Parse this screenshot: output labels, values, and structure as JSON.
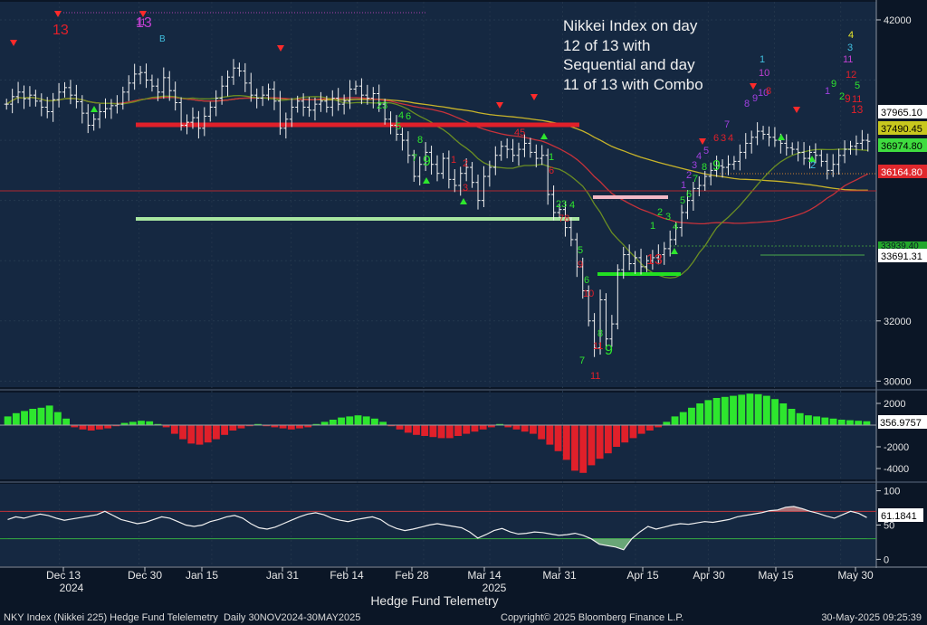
{
  "chart_data": {
    "type": "candlestick",
    "instrument": "NKY Index (Nikkei 225) Hedge Fund Telelemetry",
    "period_label": "Daily 30NOV2024-30MAY2025",
    "copyright": "Copyright© 2025 Bloomberg Finance L.P.",
    "timestamp": "30-May-2025 09:25:39",
    "footer_center": "Hedge Fund Telemetry",
    "annotation": [
      "Nikkei Index on day",
      "12 of 13 with",
      "Sequential and day",
      "11 of 13 with Combo"
    ],
    "x_ticks": [
      "Dec 13",
      "Dec 30",
      "Jan 15",
      "Jan 31",
      "Feb 14",
      "Feb 28",
      "Mar 14",
      "Mar 31",
      "Apr 15",
      "Apr 30",
      "May 15",
      "May 30"
    ],
    "x_year_labels": [
      "2024",
      "2025"
    ],
    "price_panel": {
      "yticks": [
        "42000",
        "32000",
        "30000"
      ],
      "ylim": [
        29800,
        42600
      ],
      "closes": [
        39200,
        39450,
        39600,
        39380,
        39500,
        39300,
        39100,
        38950,
        39350,
        39600,
        39750,
        39500,
        39280,
        38900,
        38500,
        38700,
        38950,
        39050,
        39150,
        39200,
        39600,
        39900,
        40200,
        40250,
        40000,
        39800,
        39600,
        40080,
        39650,
        39250,
        38500,
        38600,
        38750,
        38400,
        38800,
        39100,
        39400,
        39800,
        40100,
        40400,
        40300,
        39900,
        39500,
        39400,
        39500,
        39700,
        39300,
        38400,
        38700,
        39100,
        39300,
        39100,
        39000,
        39200,
        39300,
        39100,
        39400,
        39200,
        39300,
        39700,
        39800,
        39500,
        39400,
        39550,
        39200,
        38700,
        38500,
        38200,
        38000,
        37500,
        36800,
        37200,
        37600,
        37200,
        36900,
        37400,
        36700,
        36500,
        36900,
        37100,
        36600,
        36000,
        36800,
        37100,
        37500,
        37800,
        37700,
        37500,
        37700,
        37900,
        37600,
        37400,
        37500,
        36200,
        35600,
        35700,
        35100,
        34700,
        33800,
        33000,
        32000,
        31100,
        32700,
        31400,
        31900,
        33700,
        34200,
        33900,
        34100,
        33800,
        34000,
        34100,
        34200,
        34400,
        34700,
        35100,
        35600,
        36000,
        36400,
        36500,
        36800,
        37000,
        37150,
        37100,
        37200,
        37300,
        37600,
        37900,
        38100,
        38300,
        38200,
        38100,
        38000,
        37900,
        37750,
        37700,
        37600,
        37400,
        37600,
        37500,
        37300,
        37000,
        37200,
        37500,
        37700,
        37800,
        37900,
        38000,
        37965
      ],
      "price_tags": [
        {
          "label": "37965.10",
          "color": "#ffffff",
          "text_color": "#000000"
        },
        {
          "label": "37490.45",
          "color": "#c8c81e",
          "text_color": "#000000"
        },
        {
          "label": "36974.80",
          "color": "#3fdc3f",
          "text_color": "#000000"
        },
        {
          "label": "36164.80",
          "color": "#e0282d",
          "text_color": "#ffffff"
        },
        {
          "label": "33691.31",
          "color": "#ffffff",
          "text_color": "#000000"
        }
      ],
      "obscured_tag": "33939.40",
      "countdown_labels": [
        "13",
        "13",
        "13",
        "13",
        "9",
        "9",
        "9",
        "13"
      ]
    },
    "histogram_panel": {
      "yticks": [
        "2000",
        "-2000",
        "-4000"
      ],
      "last_value_tag": "356.9757",
      "ylim": [
        -5000,
        3000
      ],
      "values": [
        800,
        1100,
        1300,
        1500,
        1600,
        1800,
        1200,
        600,
        -200,
        -400,
        -500,
        -400,
        -300,
        -100,
        200,
        300,
        400,
        350,
        100,
        -200,
        -800,
        -1300,
        -1700,
        -1800,
        -1600,
        -1300,
        -900,
        -500,
        -300,
        -100,
        100,
        -100,
        -200,
        -300,
        -400,
        -300,
        -200,
        100,
        300,
        500,
        700,
        800,
        900,
        800,
        600,
        300,
        -100,
        -400,
        -700,
        -900,
        -1000,
        -1100,
        -1200,
        -1200,
        -1000,
        -800,
        -600,
        -400,
        -200,
        100,
        -200,
        -400,
        -600,
        -800,
        -1300,
        -1800,
        -2400,
        -3200,
        -4200,
        -4400,
        -3700,
        -3100,
        -2600,
        -2000,
        -1600,
        -1200,
        -800,
        -500,
        -200,
        300,
        800,
        1200,
        1600,
        2000,
        2300,
        2500,
        2600,
        2700,
        2800,
        2900,
        2850,
        2700,
        2400,
        2000,
        1500,
        1100,
        900,
        800,
        700,
        600,
        500,
        450,
        400,
        357
      ]
    },
    "oscillator_panel": {
      "yticks": [
        "100",
        "50",
        "0"
      ],
      "last_value_tag": "61.1841",
      "ylim": [
        -10,
        110
      ],
      "levels": [
        70,
        30
      ],
      "values": [
        58,
        62,
        60,
        63,
        66,
        64,
        60,
        57,
        59,
        61,
        63,
        65,
        70,
        64,
        58,
        55,
        52,
        54,
        58,
        62,
        60,
        55,
        50,
        48,
        50,
        55,
        58,
        62,
        64,
        60,
        52,
        46,
        44,
        47,
        52,
        57,
        62,
        66,
        68,
        65,
        60,
        57,
        55,
        58,
        60,
        62,
        58,
        50,
        45,
        42,
        44,
        47,
        50,
        52,
        50,
        48,
        46,
        40,
        31,
        36,
        42,
        45,
        40,
        37,
        38,
        40,
        39,
        37,
        35,
        36,
        38,
        35,
        30,
        22,
        20,
        18,
        14,
        30,
        40,
        48,
        44,
        47,
        50,
        52,
        51,
        53,
        55,
        54,
        56,
        58,
        62,
        64,
        66,
        68,
        71,
        72,
        76,
        77,
        74,
        70,
        67,
        63,
        60,
        65,
        70,
        67,
        61
      ]
    }
  }
}
